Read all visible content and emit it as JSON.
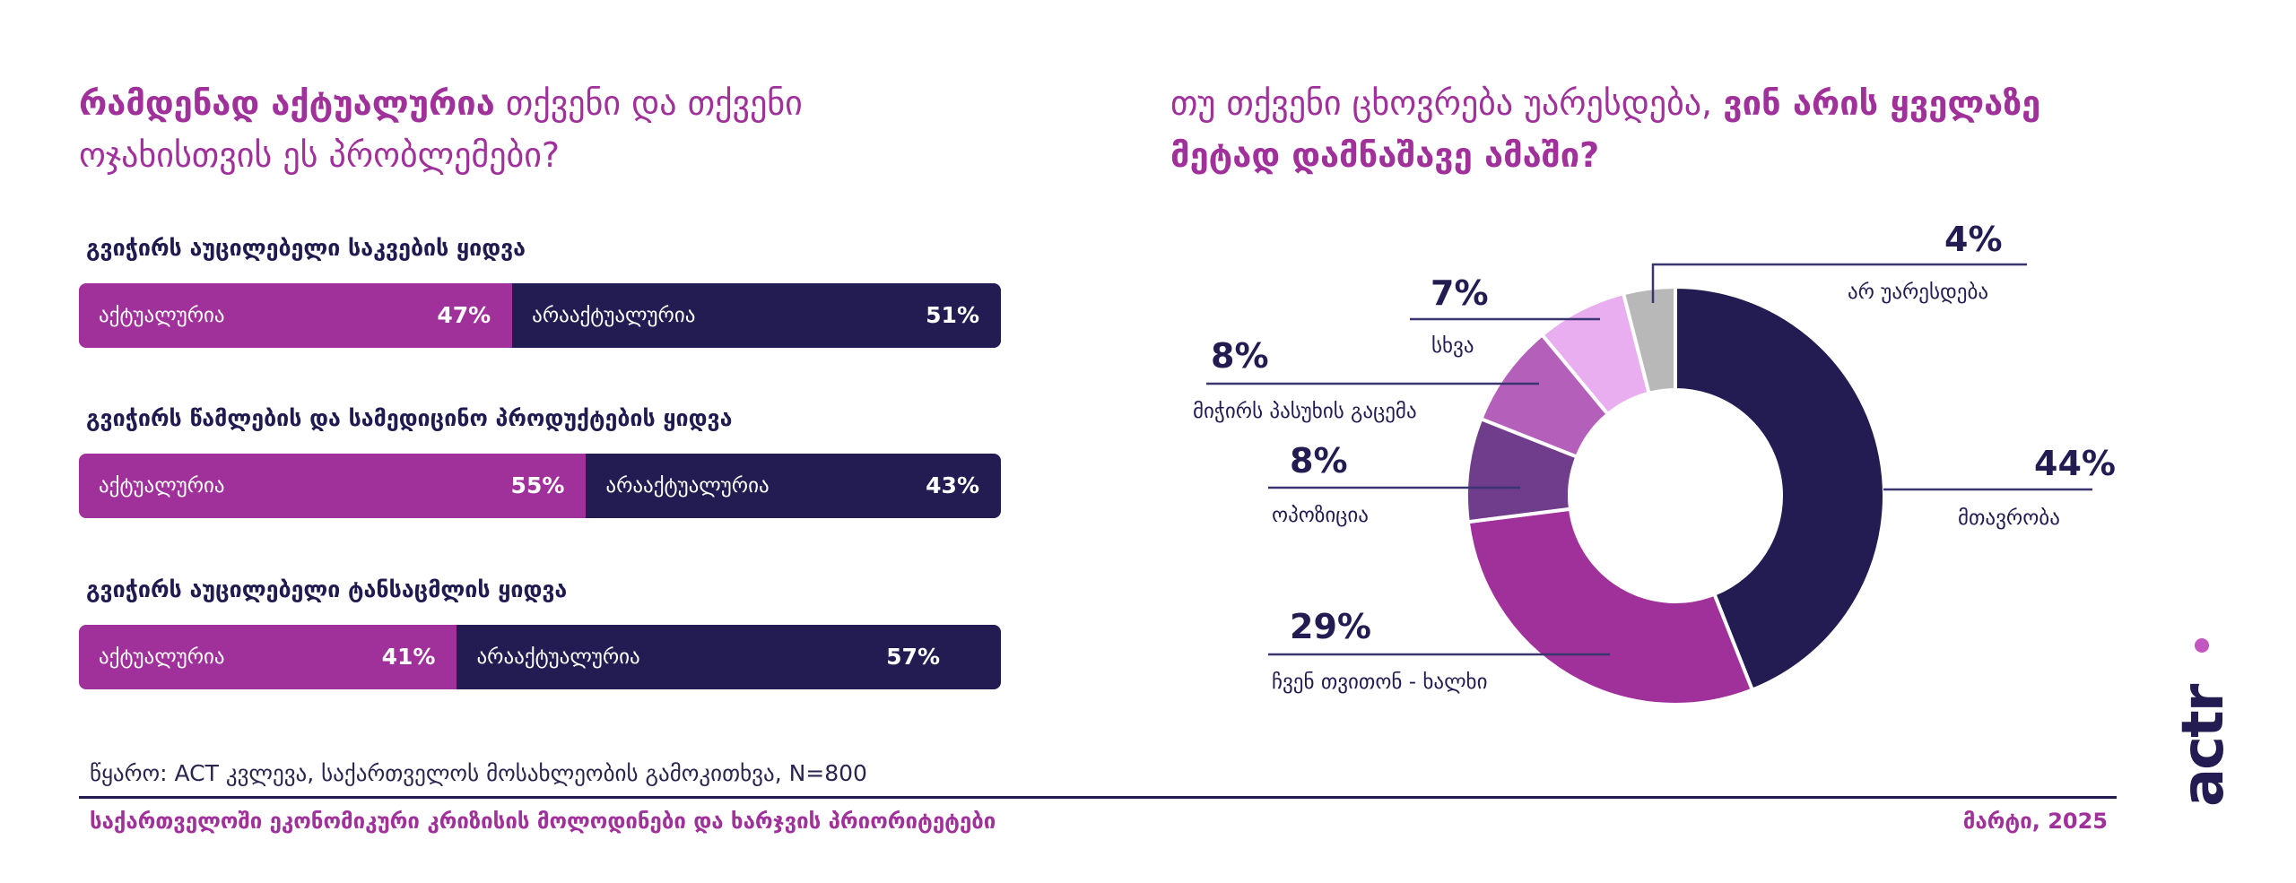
{
  "left_title": {
    "bold": "რამდენად აქტუალურია",
    "rest": " თქვენი და თქვენი ოჯახისთვის ეს პრობლემები?"
  },
  "right_title": {
    "rest": "თუ თქვენი ცხოვრება უარესდება, ",
    "bold": "ვინ არის ყველაზე მეტად დამნაშავე ამაში?"
  },
  "colors": {
    "relevant": "#a0309a",
    "not_relevant": "#221c52"
  },
  "chart_data": [
    {
      "type": "bar",
      "orientation": "horizontal-stacked",
      "categories": [
        "გვიჭირს აუცილებელი საკვების ყიდვა",
        "გვიჭირს წამლების და სამედიცინო პროდუქტების ყიდვა",
        "გვიჭირს აუცილებელი ტანსაცმლის ყიდვა"
      ],
      "series": [
        {
          "name": "აქტუალურია",
          "values": [
            47,
            55,
            41
          ],
          "labels": [
            "47%",
            "55%",
            "41%"
          ]
        },
        {
          "name": "არააქტუალურია",
          "values": [
            51,
            43,
            57
          ],
          "labels": [
            "51%",
            "43%",
            "57%"
          ]
        }
      ],
      "ylim": [
        0,
        100
      ]
    },
    {
      "type": "pie",
      "style": "donut",
      "slices": [
        {
          "label": "მთავრობა",
          "value": 44,
          "pct": "44%",
          "color": "#221c52"
        },
        {
          "label": "ჩვენ თვითონ - ხალხი",
          "value": 29,
          "pct": "29%",
          "color": "#a0309a"
        },
        {
          "label": "ოპოზიცია",
          "value": 8,
          "pct": "8%",
          "color": "#6f3d8c"
        },
        {
          "label": "მიჭირს პასუხის გაცემა",
          "value": 8,
          "pct": "8%",
          "color": "#b45fb9"
        },
        {
          "label": "სხვა",
          "value": 7,
          "pct": "7%",
          "color": "#e9aeef"
        },
        {
          "label": "არ უარესდება",
          "value": 4,
          "pct": "4%",
          "color": "#b8b8b8"
        }
      ]
    }
  ],
  "source": "წყარო: ACT კვლევა, საქართველოს მოსახლეობის გამოკითხვა, N=800",
  "footer": {
    "left": "საქართველოში ეკონომიკური კრიზისის მოლოდინები და ხარჯვის პრიორიტეტები",
    "right": "მარტი, 2025"
  },
  "logo": {
    "text": "actr"
  }
}
